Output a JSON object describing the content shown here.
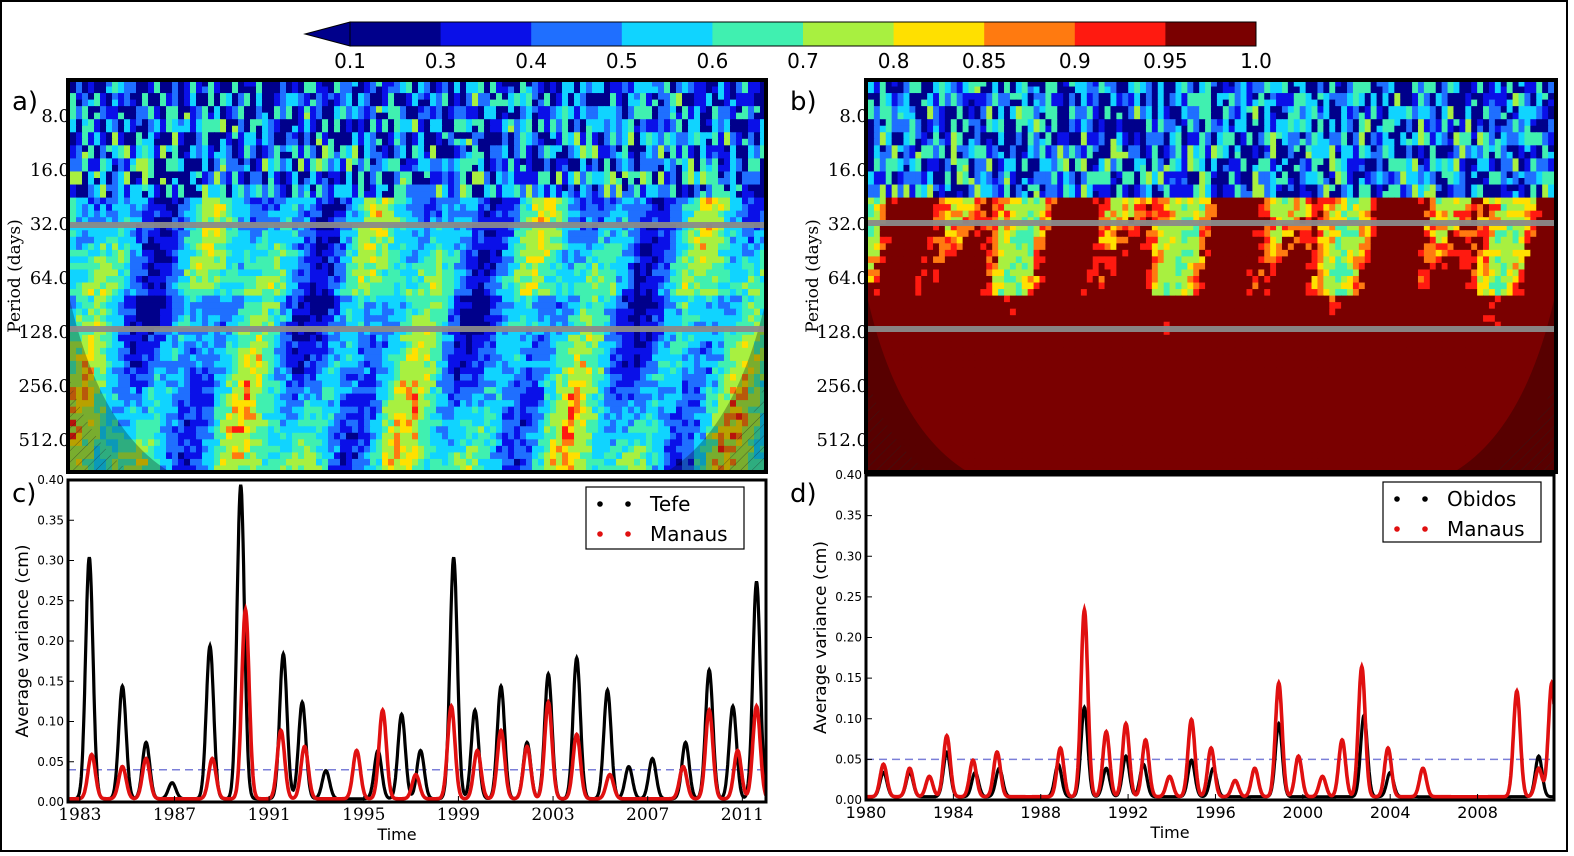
{
  "colorbar": {
    "ticks": [
      "0.1",
      "0.3",
      "0.4",
      "0.5",
      "0.6",
      "0.7",
      "0.8",
      "0.85",
      "0.9",
      "0.95",
      "1.0"
    ],
    "colors": [
      "#00008b",
      "#0a10e8",
      "#1f6fff",
      "#10d4ff",
      "#40f0b0",
      "#a8f040",
      "#ffe000",
      "#ff7a10",
      "#ff1a10",
      "#7a0000"
    ]
  },
  "panels": {
    "a": {
      "letter": "a)",
      "ylabel": "Period (days)",
      "yticks": [
        "8.0",
        "16.0",
        "32.0",
        "64.0",
        "128.0",
        "256.0",
        "512.0"
      ],
      "bias": -0.2
    },
    "b": {
      "letter": "b)",
      "ylabel": "Period (days)",
      "yticks": [
        "8.0",
        "16.0",
        "32.0",
        "64.0",
        "128.0",
        "256.0",
        "512.0"
      ],
      "bias": 0.45
    },
    "c": {
      "letter": "c)"
    },
    "d": {
      "letter": "d)"
    }
  },
  "chart_data": [
    {
      "panel": "c",
      "type": "line",
      "xlabel": "Time",
      "ylabel": "Average variance (cm)",
      "xlim": [
        1982.5,
        2012
      ],
      "ylim": [
        0,
        0.4
      ],
      "xticks": [
        "1983",
        "1987",
        "1991",
        "1995",
        "1999",
        "2003",
        "2007",
        "2011"
      ],
      "xtick_values": [
        1983,
        1987,
        1991,
        1995,
        1999,
        2003,
        2007,
        2011
      ],
      "yticks": [
        "0.00",
        "0.05",
        "0.10",
        "0.15",
        "0.20",
        "0.25",
        "0.30",
        "0.35",
        "0.40"
      ],
      "ytick_values": [
        0,
        0.05,
        0.1,
        0.15,
        0.2,
        0.25,
        0.3,
        0.35,
        0.4
      ],
      "threshold": 0.04,
      "legend": [
        "Tefe",
        "Manaus"
      ],
      "series": [
        {
          "name": "Tefe",
          "color": "#000000",
          "peaks": [
            [
              1983.4,
              0.3
            ],
            [
              1984.8,
              0.14
            ],
            [
              1985.8,
              0.07
            ],
            [
              1986.9,
              0.02
            ],
            [
              1988.5,
              0.19
            ],
            [
              1989.8,
              0.39
            ],
            [
              1991.6,
              0.18
            ],
            [
              1992.4,
              0.12
            ],
            [
              1993.4,
              0.035
            ],
            [
              1995.6,
              0.06
            ],
            [
              1996.6,
              0.105
            ],
            [
              1997.4,
              0.06
            ],
            [
              1998.8,
              0.3
            ],
            [
              1999.7,
              0.11
            ],
            [
              2000.8,
              0.14
            ],
            [
              2001.9,
              0.07
            ],
            [
              2002.8,
              0.155
            ],
            [
              2004.0,
              0.175
            ],
            [
              2005.3,
              0.135
            ],
            [
              2006.2,
              0.04
            ],
            [
              2007.2,
              0.05
            ],
            [
              2008.6,
              0.07
            ],
            [
              2009.6,
              0.16
            ],
            [
              2010.6,
              0.115
            ],
            [
              2011.6,
              0.27
            ]
          ]
        },
        {
          "name": "Manaus",
          "color": "#e01010",
          "peaks": [
            [
              1983.5,
              0.055
            ],
            [
              1984.8,
              0.04
            ],
            [
              1985.8,
              0.05
            ],
            [
              1988.6,
              0.05
            ],
            [
              1990.0,
              0.235
            ],
            [
              1991.5,
              0.085
            ],
            [
              1992.5,
              0.065
            ],
            [
              1994.7,
              0.06
            ],
            [
              1995.8,
              0.11
            ],
            [
              1997.2,
              0.03
            ],
            [
              1998.7,
              0.115
            ],
            [
              1999.8,
              0.06
            ],
            [
              2000.8,
              0.085
            ],
            [
              2001.9,
              0.065
            ],
            [
              2002.8,
              0.12
            ],
            [
              2004.0,
              0.08
            ],
            [
              2005.4,
              0.03
            ],
            [
              2008.5,
              0.04
            ],
            [
              2009.6,
              0.11
            ],
            [
              2010.8,
              0.06
            ],
            [
              2011.6,
              0.115
            ]
          ]
        }
      ]
    },
    {
      "panel": "d",
      "type": "line",
      "xlabel": "Time",
      "ylabel": "Average variance (cm)",
      "xlim": [
        1980,
        2011.5
      ],
      "ylim": [
        0,
        0.4
      ],
      "xticks": [
        "1980",
        "1984",
        "1988",
        "1992",
        "1996",
        "2000",
        "2004",
        "2008"
      ],
      "xtick_values": [
        1980,
        1984,
        1988,
        1992,
        1996,
        2000,
        2004,
        2008
      ],
      "yticks": [
        "0.00",
        "0.05",
        "0.10",
        "0.15",
        "0.20",
        "0.25",
        "0.30",
        "0.35",
        "0.40"
      ],
      "ytick_values": [
        0,
        0.05,
        0.1,
        0.15,
        0.2,
        0.25,
        0.3,
        0.35,
        0.4
      ],
      "threshold": 0.05,
      "legend": [
        "Obidos",
        "Manaus"
      ],
      "series": [
        {
          "name": "Obidos",
          "color": "#000000",
          "peaks": [
            [
              1980.8,
              0.03
            ],
            [
              1982.0,
              0.03
            ],
            [
              1983.7,
              0.055
            ],
            [
              1985.0,
              0.03
            ],
            [
              1986.1,
              0.035
            ],
            [
              1988.8,
              0.04
            ],
            [
              1990.0,
              0.11
            ],
            [
              1991.0,
              0.035
            ],
            [
              1991.9,
              0.05
            ],
            [
              1992.7,
              0.04
            ],
            [
              1994.9,
              0.045
            ],
            [
              1995.9,
              0.035
            ],
            [
              1998.9,
              0.09
            ],
            [
              2002.8,
              0.1
            ],
            [
              2004.0,
              0.03
            ],
            [
              2010.8,
              0.05
            ]
          ]
        },
        {
          "name": "Manaus",
          "color": "#e01010",
          "peaks": [
            [
              1980.8,
              0.04
            ],
            [
              1982.0,
              0.035
            ],
            [
              1982.9,
              0.025
            ],
            [
              1983.7,
              0.075
            ],
            [
              1984.9,
              0.045
            ],
            [
              1986.0,
              0.055
            ],
            [
              1988.9,
              0.06
            ],
            [
              1990.0,
              0.23
            ],
            [
              1991.0,
              0.08
            ],
            [
              1991.9,
              0.09
            ],
            [
              1992.8,
              0.07
            ],
            [
              1993.9,
              0.025
            ],
            [
              1994.9,
              0.095
            ],
            [
              1995.8,
              0.06
            ],
            [
              1996.9,
              0.02
            ],
            [
              1997.8,
              0.035
            ],
            [
              1998.9,
              0.14
            ],
            [
              1999.8,
              0.05
            ],
            [
              2000.9,
              0.025
            ],
            [
              2001.8,
              0.07
            ],
            [
              2002.7,
              0.16
            ],
            [
              2003.9,
              0.06
            ],
            [
              2005.5,
              0.035
            ],
            [
              2009.8,
              0.13
            ],
            [
              2010.8,
              0.035
            ],
            [
              2011.4,
              0.14
            ]
          ]
        }
      ]
    }
  ]
}
